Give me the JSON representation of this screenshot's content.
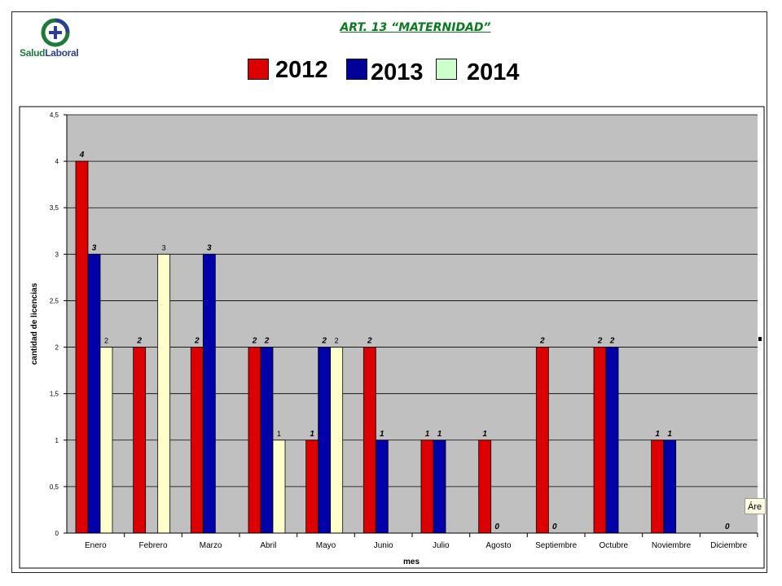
{
  "header": {
    "title": "ART. 13 “MATERNIDAD”",
    "logo_text_a": "Salud",
    "logo_text_b": "Laboral"
  },
  "legend": [
    {
      "label": "2012",
      "color": "#dd0000"
    },
    {
      "label": "2013",
      "color": "#000099"
    },
    {
      "label": "2014",
      "color": "#ccffcc"
    }
  ],
  "sidebox_text": "Áre",
  "chart_data": {
    "type": "bar",
    "title": "ART. 13 “MATERNIDAD”",
    "xlabel": "mes",
    "ylabel": "cantidad de licencias",
    "ylim": [
      0,
      4.5
    ],
    "y_ticks": [
      "0",
      "0,5",
      "1",
      "1,5",
      "2",
      "2,5",
      "3",
      "3,5",
      "4",
      "4,5"
    ],
    "y_tick_values": [
      0,
      0.5,
      1,
      1.5,
      2,
      2.5,
      3,
      3.5,
      4,
      4.5
    ],
    "grid": true,
    "legend_position": "top",
    "categories": [
      "Enero",
      "Febrero",
      "Marzo",
      "Abril",
      "Mayo",
      "Junio",
      "Julio",
      "Agosto",
      "Septiembre",
      "Octubre",
      "Noviembre",
      "Diciembre"
    ],
    "series": [
      {
        "name": "2012",
        "color": "#dd0000",
        "values": [
          4,
          2,
          2,
          2,
          1,
          2,
          1,
          1,
          2,
          2,
          1,
          null
        ],
        "labels": [
          "4",
          "2",
          "2",
          "2",
          "1",
          "2",
          "1",
          "1",
          "2",
          "2",
          "1",
          ""
        ]
      },
      {
        "name": "2013",
        "color": "#0000aa",
        "values": [
          3,
          null,
          3,
          2,
          2,
          1,
          1,
          0,
          0,
          2,
          1,
          0
        ],
        "labels": [
          "3",
          "",
          "3",
          "2",
          "2",
          "1",
          "1",
          "0",
          "0",
          "2",
          "1",
          "0"
        ]
      },
      {
        "name": "2014",
        "color": "#ffffcc",
        "values": [
          2,
          3,
          null,
          1,
          2,
          null,
          null,
          null,
          null,
          null,
          null,
          null
        ],
        "labels": [
          "2",
          "3",
          "",
          "1",
          "2",
          "",
          "",
          "",
          "",
          "",
          "",
          ""
        ]
      }
    ]
  }
}
